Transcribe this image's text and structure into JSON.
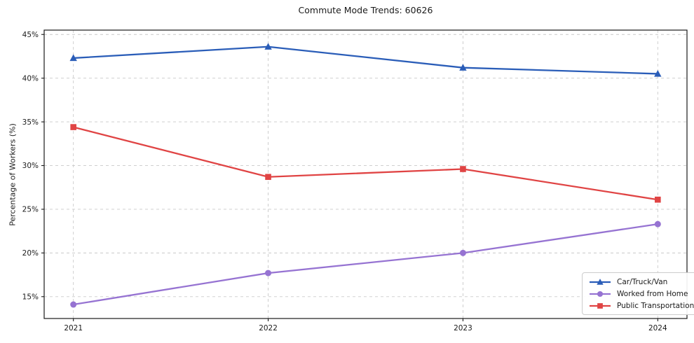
{
  "chart_data": {
    "type": "line",
    "title": "Commute Mode Trends: 60626",
    "xlabel": "",
    "ylabel": "Percentage of Workers (%)",
    "x": [
      2021,
      2022,
      2023,
      2024
    ],
    "x_tick_labels": [
      "2021",
      "2022",
      "2023",
      "2024"
    ],
    "y_ticks": [
      15,
      20,
      25,
      30,
      35,
      40,
      45
    ],
    "y_tick_suffix": "%",
    "xlim": [
      2020.85,
      2024.15
    ],
    "ylim": [
      12.5,
      45.5
    ],
    "grid": true,
    "grid_style": "dashed",
    "legend_position": "lower right",
    "grid_color": "#c9c9c9",
    "axis_color": "#1a1a1a",
    "text_color": "#1a1a1a",
    "series": [
      {
        "name": "Car/Truck/Van",
        "marker": "triangle",
        "color": "#2a5db8",
        "values": [
          42.3,
          43.6,
          41.2,
          40.5
        ]
      },
      {
        "name": "Worked from Home",
        "marker": "circle",
        "color": "#9673d2",
        "values": [
          14.1,
          17.7,
          20.0,
          23.3
        ]
      },
      {
        "name": "Public Transportation",
        "marker": "square",
        "color": "#e04444",
        "values": [
          34.4,
          28.7,
          29.6,
          26.1
        ]
      }
    ]
  }
}
